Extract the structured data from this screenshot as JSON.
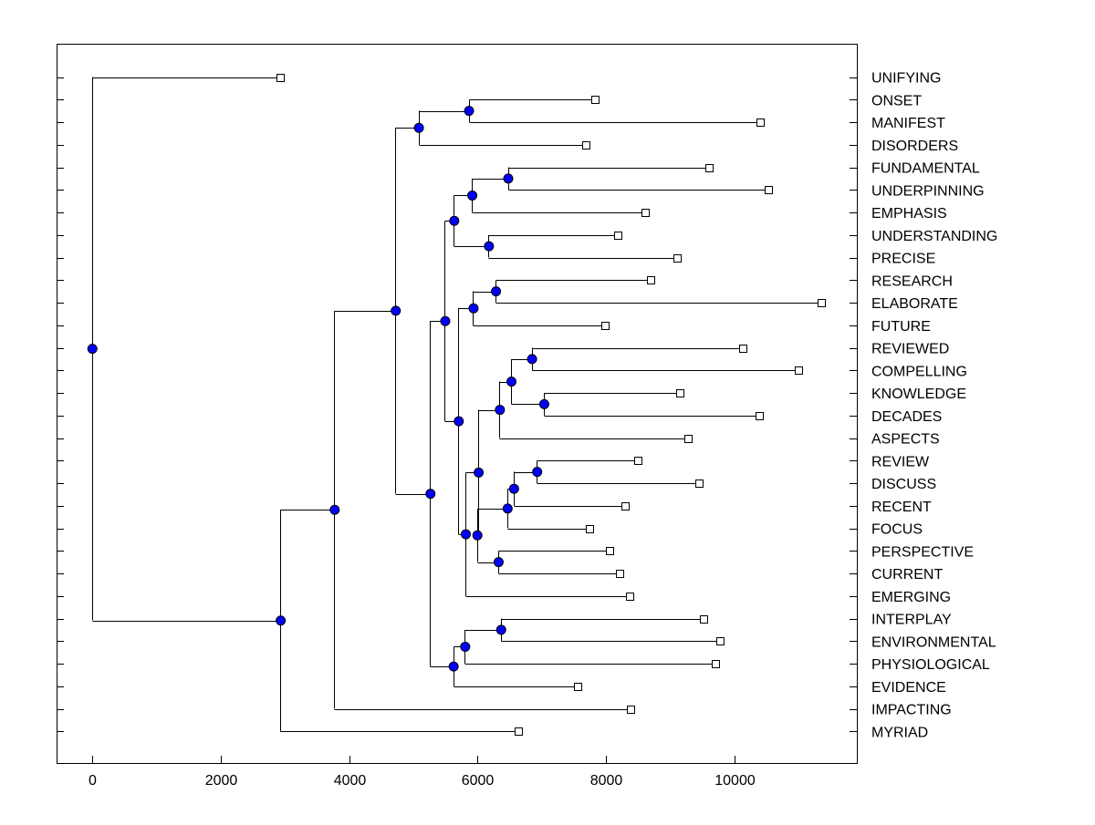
{
  "chart_data": {
    "type": "dendrogram",
    "title": "",
    "xlabel": "",
    "ylabel": "",
    "xlim": [
      -550,
      11900
    ],
    "xticks": [
      0,
      2000,
      4000,
      6000,
      8000,
      10000
    ],
    "grid": false,
    "colors": {
      "node": "#0000ff",
      "leaf": "#ffffff",
      "line": "#000000"
    },
    "leaves": [
      "UNIFYING",
      "ONSET",
      "MANIFEST",
      "DISORDERS",
      "FUNDAMENTAL",
      "UNDERPINNING",
      "EMPHASIS",
      "UNDERSTANDING",
      "PRECISE",
      "RESEARCH",
      "ELABORATE",
      "FUTURE",
      "REVIEWED",
      "COMPELLING",
      "KNOWLEDGE",
      "DECADES",
      "ASPECTS",
      "REVIEW",
      "DISCUSS",
      "RECENT",
      "FOCUS",
      "PERSPECTIVE",
      "CURRENT",
      "EMERGING",
      "INTERPLAY",
      "ENVIRONMENTAL",
      "PHYSIOLOGICAL",
      "EVIDENCE",
      "IMPACTING",
      "MYRIAD"
    ],
    "leaf_values": {
      "UNIFYING": 2930,
      "ONSET": 7830,
      "MANIFEST": 10400,
      "DISORDERS": 7690,
      "FUNDAMENTAL": 9600,
      "UNDERPINNING": 10530,
      "EMPHASIS": 8610,
      "UNDERSTANDING": 8180,
      "PRECISE": 9100,
      "RESEARCH": 8690,
      "ELABORATE": 11350,
      "FUTURE": 7980,
      "REVIEWED": 10130,
      "COMPELLING": 10990,
      "KNOWLEDGE": 9140,
      "DECADES": 10380,
      "ASPECTS": 9280,
      "REVIEW": 8500,
      "DISCUSS": 9440,
      "RECENT": 8300,
      "FOCUS": 7740,
      "PERSPECTIVE": 8050,
      "CURRENT": 8210,
      "EMERGING": 8360,
      "INTERPLAY": 9510,
      "ENVIRONMENTAL": 9770,
      "PHYSIOLOGICAL": 9700,
      "EVIDENCE": 7560,
      "IMPACTING": 8380,
      "MYRIAD": 6640
    },
    "tree": {
      "v": 0,
      "c": [
        "UNIFYING",
        {
          "v": 2930,
          "c": [
            {
              "v": 3770,
              "c": [
                {
                  "v": 4720,
                  "c": [
                    {
                      "v": 5080,
                      "c": [
                        {
                          "v": 5860,
                          "c": [
                            "ONSET",
                            "MANIFEST"
                          ]
                        },
                        "DISORDERS"
                      ]
                    },
                    {
                      "v": 5260,
                      "c": [
                        {
                          "v": 5490,
                          "c": [
                            {
                              "v": 5630,
                              "c": [
                                {
                                  "v": 5910,
                                  "c": [
                                    {
                                      "v": 6470,
                                      "c": [
                                        "FUNDAMENTAL",
                                        "UNDERPINNING"
                                      ]
                                    },
                                    "EMPHASIS"
                                  ]
                                },
                                {
                                  "v": 6170,
                                  "c": [
                                    "UNDERSTANDING",
                                    "PRECISE"
                                  ]
                                }
                              ]
                            },
                            {
                              "v": 5700,
                              "c": [
                                {
                                  "v": 5930,
                                  "c": [
                                    {
                                      "v": 6280,
                                      "c": [
                                        "RESEARCH",
                                        "ELABORATE"
                                      ]
                                    },
                                    "FUTURE"
                                  ]
                                },
                                {
                                  "v": 5810,
                                  "c": [
                                    {
                                      "v": 6010,
                                      "c": [
                                        {
                                          "v": 6340,
                                          "c": [
                                            {
                                              "v": 6520,
                                              "c": [
                                                {
                                                  "v": 6840,
                                                  "c": [
                                                    "REVIEWED",
                                                    "COMPELLING"
                                                  ]
                                                },
                                                {
                                                  "v": 7030,
                                                  "c": [
                                                    "KNOWLEDGE",
                                                    "DECADES"
                                                  ]
                                                }
                                              ]
                                            },
                                            "ASPECTS"
                                          ]
                                        },
                                        {
                                          "v": 5990,
                                          "c": [
                                            {
                                              "v": 6460,
                                              "c": [
                                                {
                                                  "v": 6560,
                                                  "c": [
                                                    {
                                                      "v": 6920,
                                                      "c": [
                                                        "REVIEW",
                                                        "DISCUSS"
                                                      ]
                                                    },
                                                    "RECENT"
                                                  ]
                                                },
                                                "FOCUS"
                                              ]
                                            },
                                            {
                                              "v": 6320,
                                              "c": [
                                                "PERSPECTIVE",
                                                "CURRENT"
                                              ]
                                            }
                                          ]
                                        }
                                      ]
                                    },
                                    "EMERGING"
                                  ]
                                }
                              ]
                            }
                          ]
                        },
                        {
                          "v": 5620,
                          "c": [
                            {
                              "v": 5800,
                              "c": [
                                {
                                  "v": 6360,
                                  "c": [
                                    "INTERPLAY",
                                    "ENVIRONMENTAL"
                                  ]
                                },
                                "PHYSIOLOGICAL"
                              ]
                            },
                            "EVIDENCE"
                          ]
                        }
                      ]
                    }
                  ]
                },
                "IMPACTING"
              ]
            },
            "MYRIAD"
          ]
        }
      ]
    }
  }
}
